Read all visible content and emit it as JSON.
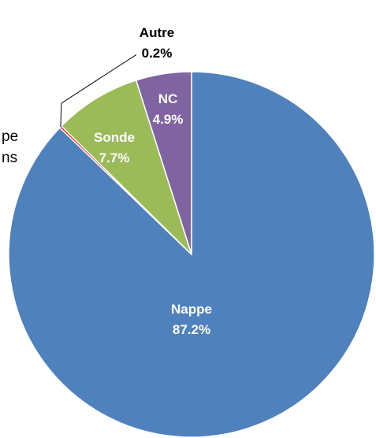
{
  "clipped_legend_fragments": [
    "pe",
    "ns"
  ],
  "chart_data": {
    "type": "pie",
    "title": "",
    "start": "12 o'clock",
    "direction": "clockwise",
    "slices": [
      {
        "label": "Nappe",
        "value": 87.2,
        "value_label": "87.2%",
        "color": "#4F81BD",
        "label_color": "#FFFFFF"
      },
      {
        "label": "Autre",
        "value": 0.2,
        "value_label": "0.2%",
        "color": "#FF0000",
        "label_color": "#000000",
        "label_position": "outside-leader"
      },
      {
        "label": "Sonde",
        "value": 7.7,
        "value_label": "7.7%",
        "color": "#9BBB59",
        "label_color": "#FFFFFF"
      },
      {
        "label": "NC",
        "value": 4.9,
        "value_label": "4.9%",
        "color": "#8064A2",
        "label_color": "#FFFFFF"
      }
    ],
    "slice_border_color": "#FFFFFF"
  }
}
